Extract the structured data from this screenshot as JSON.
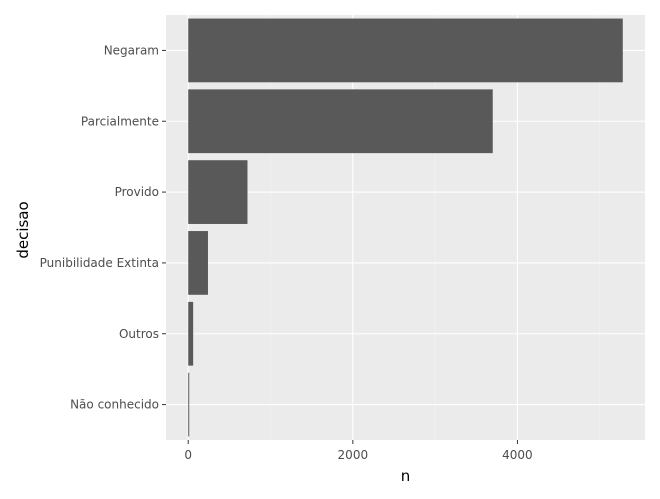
{
  "chart_data": {
    "type": "bar",
    "orientation": "horizontal",
    "categories": [
      "Negaram",
      "Parcialmente",
      "Provido",
      "Punibilidade Extinta",
      "Outros",
      "Não conhecido"
    ],
    "values": [
      5280,
      3700,
      720,
      240,
      60,
      10
    ],
    "xlabel": "n",
    "ylabel": "decisao",
    "xlim": [
      -270,
      5550
    ],
    "xticks": [
      0,
      2000,
      4000
    ],
    "grid": true,
    "legend": "none",
    "colors": {
      "bar": "#595959",
      "panel": "#ebebeb",
      "grid_major": "#ffffff",
      "grid_minor": "#f5f5f5"
    }
  }
}
